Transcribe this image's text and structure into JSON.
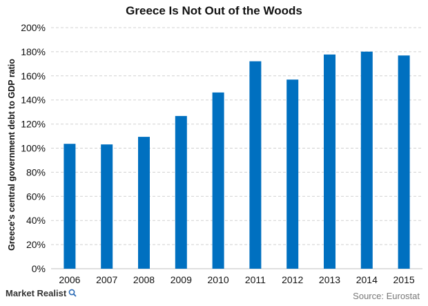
{
  "chart_data": {
    "type": "bar",
    "title": "Greece Is Not Out of the Woods",
    "ylabel": "Greece's central government debt to GDP ratio",
    "xlabel": "",
    "categories": [
      "2006",
      "2007",
      "2008",
      "2009",
      "2010",
      "2011",
      "2012",
      "2013",
      "2014",
      "2015"
    ],
    "values": [
      103.6,
      103.1,
      109.4,
      126.7,
      146.2,
      172.1,
      156.9,
      177.7,
      180.1,
      176.9
    ],
    "yticks": [
      "0%",
      "20%",
      "40%",
      "60%",
      "80%",
      "100%",
      "120%",
      "140%",
      "160%",
      "180%",
      "200%"
    ],
    "ylim": [
      0,
      200
    ],
    "grid": true,
    "bar_color": "#0070c0"
  },
  "footer": {
    "brand": "Market Realist",
    "brand_icon": "magnifier-icon",
    "source": "Source: Eurostat"
  }
}
